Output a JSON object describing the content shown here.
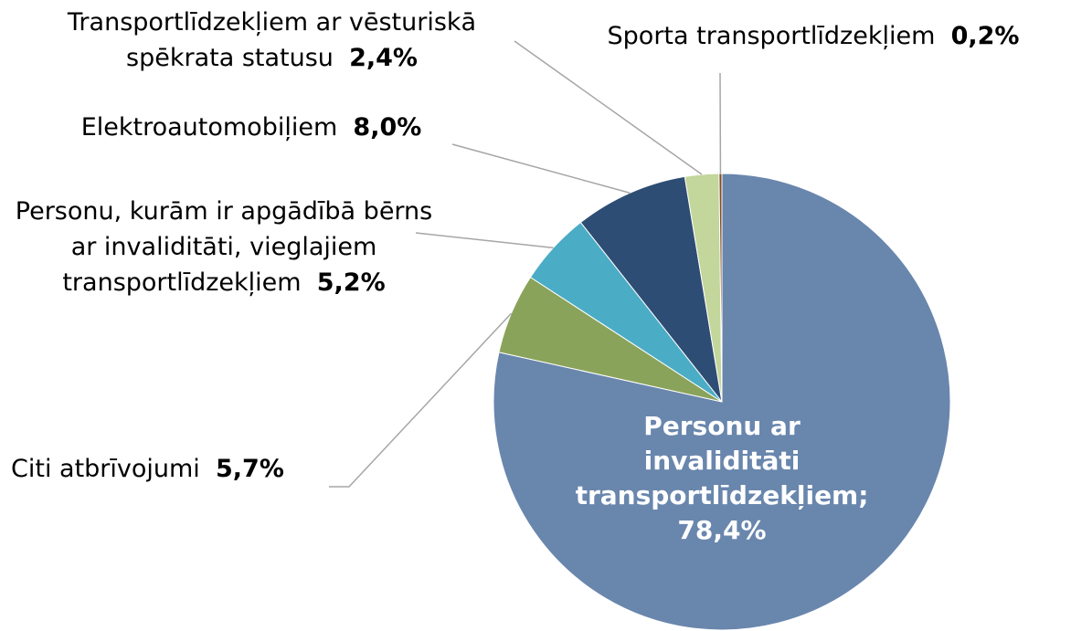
{
  "chart_data": {
    "type": "pie",
    "categories": [
      "Personu ar invaliditāti transportlīdzekļiem;",
      "Citi atbrīvojumi",
      "Personu, kurām ir apgādībā bērns ar invaliditāti, vieglajiem transportlīdzekļiem",
      "Elektroautomobiļiem",
      "Transportlīdzekļiem ar vēsturiskā spēkrata statusu",
      "Sporta transportlīdzekļiem"
    ],
    "values": [
      78.4,
      5.7,
      5.2,
      8.0,
      2.4,
      0.2
    ],
    "value_labels": [
      "78,4%",
      "5,7%",
      "5,2%",
      "8,0%",
      "2,4%",
      "0,2%"
    ],
    "colors": [
      "#6986ad",
      "#8aa35a",
      "#4bacc6",
      "#2e4d74",
      "#c3d69b",
      "#7f4b2a"
    ]
  }
}
